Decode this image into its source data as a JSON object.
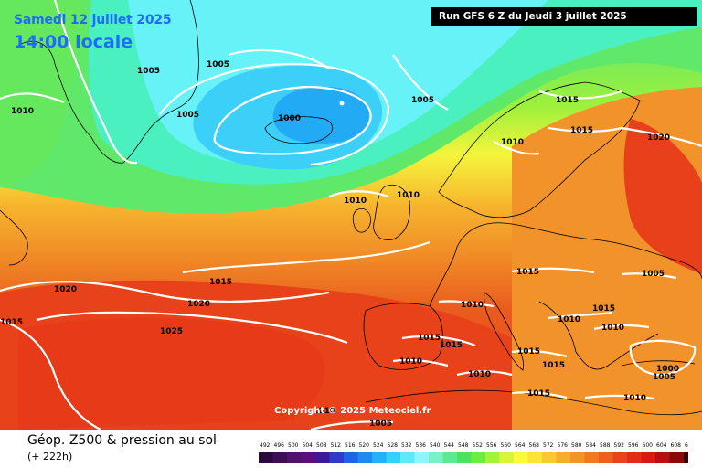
{
  "header": {
    "date": "Samedi 12 juillet 2025",
    "time": "14:00 locale",
    "run": "Run GFS 6 Z du Jeudi 3 juillet 2025"
  },
  "copyright": "Copyright © 2025 Meteociel.fr",
  "footer": {
    "title": "Géop. Z500 & pression au sol",
    "subtitle": "(+ 222h)"
  },
  "isobar_labels": [
    "1005",
    "1010",
    "1005",
    "1005",
    "1000",
    "1005",
    "1015",
    "1015",
    "1010",
    "1020",
    "1010",
    "1010",
    "1015",
    "1020",
    "1015",
    "1020",
    "1015",
    "1025",
    "1010",
    "1015",
    "1005",
    "1010",
    "1015",
    "1015",
    "1010",
    "1010",
    "1015",
    "1015",
    "1010",
    "1015",
    "1010",
    "1000",
    "1005",
    "1010",
    "1005"
  ],
  "legend": {
    "labels": [
      "492",
      "496",
      "500",
      "504",
      "508",
      "512",
      "516",
      "520",
      "524",
      "528",
      "532",
      "536",
      "540",
      "544",
      "548",
      "552",
      "556",
      "560",
      "564",
      "568",
      "572",
      "576",
      "580",
      "584",
      "588",
      "592",
      "596",
      "600",
      "604",
      "608",
      "612"
    ],
    "colors": [
      "#2a0a3a",
      "#3c0f55",
      "#4e136f",
      "#5a0f7a",
      "#3a1a9a",
      "#2f3cc8",
      "#1f62e6",
      "#1c8af0",
      "#22b2f5",
      "#35d2f8",
      "#5fe8fb",
      "#8ff5fc",
      "#7af0c8",
      "#5ee892",
      "#4be35c",
      "#6cee3e",
      "#a3f33a",
      "#d8f53a",
      "#fafa3c",
      "#fce335",
      "#fbc832",
      "#f7ad2c",
      "#f39427",
      "#ef7a22",
      "#ec5f1e",
      "#e84419",
      "#e32c14",
      "#d81a12",
      "#b80f10",
      "#8a0a0c",
      "#3a0404"
    ]
  }
}
